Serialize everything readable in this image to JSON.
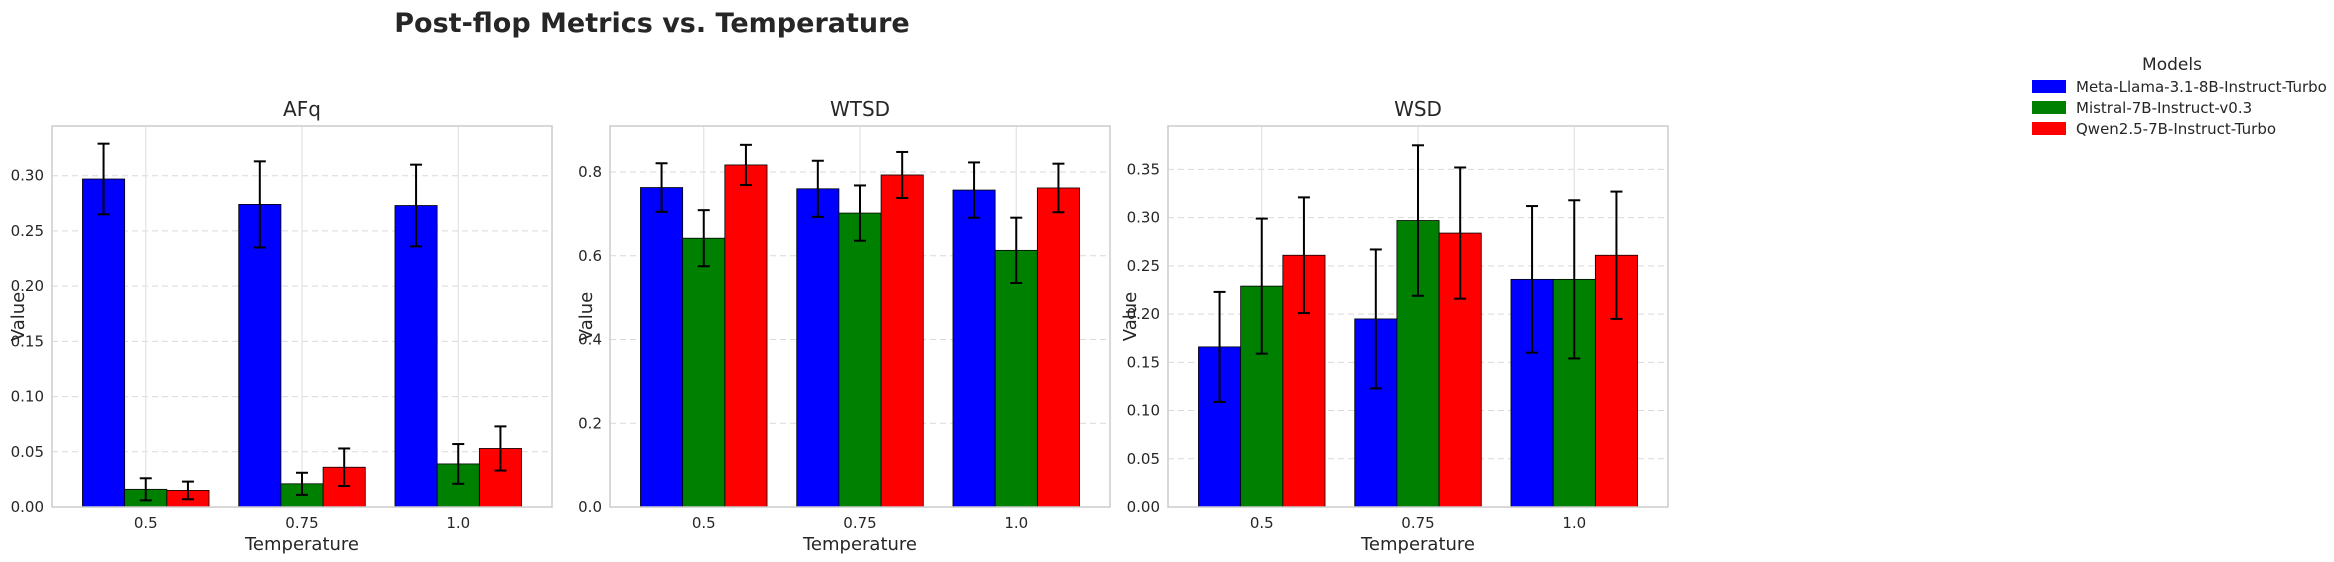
{
  "figure": {
    "title": "Post-flop Metrics vs. Temperature"
  },
  "legend": {
    "title": "Models",
    "placement": "outside-top-right"
  },
  "colors": {
    "series": [
      "#0000ff",
      "#008000",
      "#ff0000"
    ]
  },
  "chart_data": [
    {
      "type": "bar",
      "title": "AFq",
      "xlabel": "Temperature",
      "ylabel": "Value",
      "categories": [
        "0.5",
        "0.75",
        "1.0"
      ],
      "ylim": [
        0,
        0.345
      ],
      "yticks": [
        0.0,
        0.05,
        0.1,
        0.15,
        0.2,
        0.25,
        0.3
      ],
      "ytick_labels": [
        "0.00",
        "0.05",
        "0.10",
        "0.15",
        "0.20",
        "0.25",
        "0.30"
      ],
      "grid": true,
      "series": [
        {
          "name": "Meta-Llama-3.1-8B-Instruct-Turbo",
          "values": [
            0.297,
            0.274,
            0.273
          ],
          "errors": [
            0.032,
            0.039,
            0.037
          ]
        },
        {
          "name": "Mistral-7B-Instruct-v0.3",
          "values": [
            0.016,
            0.021,
            0.039
          ],
          "errors": [
            0.01,
            0.01,
            0.018
          ]
        },
        {
          "name": "Qwen2.5-7B-Instruct-Turbo",
          "values": [
            0.015,
            0.036,
            0.053
          ],
          "errors": [
            0.008,
            0.017,
            0.02
          ]
        }
      ]
    },
    {
      "type": "bar",
      "title": "WTSD",
      "xlabel": "Temperature",
      "ylabel": "Value",
      "categories": [
        "0.5",
        "0.75",
        "1.0"
      ],
      "ylim": [
        0,
        0.91
      ],
      "yticks": [
        0.0,
        0.2,
        0.4,
        0.6,
        0.8
      ],
      "ytick_labels": [
        "0.0",
        "0.2",
        "0.4",
        "0.6",
        "0.8"
      ],
      "grid": true,
      "series": [
        {
          "name": "Meta-Llama-3.1-8B-Instruct-Turbo",
          "values": [
            0.763,
            0.76,
            0.757
          ],
          "errors": [
            0.058,
            0.067,
            0.066
          ]
        },
        {
          "name": "Mistral-7B-Instruct-v0.3",
          "values": [
            0.642,
            0.702,
            0.613
          ],
          "errors": [
            0.067,
            0.066,
            0.078
          ]
        },
        {
          "name": "Qwen2.5-7B-Instruct-Turbo",
          "values": [
            0.817,
            0.793,
            0.762
          ],
          "errors": [
            0.048,
            0.055,
            0.058
          ]
        }
      ]
    },
    {
      "type": "bar",
      "title": "WSD",
      "xlabel": "Temperature",
      "ylabel": "Value",
      "categories": [
        "0.5",
        "0.75",
        "1.0"
      ],
      "ylim": [
        0,
        0.395
      ],
      "yticks": [
        0.0,
        0.05,
        0.1,
        0.15,
        0.2,
        0.25,
        0.3,
        0.35
      ],
      "ytick_labels": [
        "0.00",
        "0.05",
        "0.10",
        "0.15",
        "0.20",
        "0.25",
        "0.30",
        "0.35"
      ],
      "grid": true,
      "series": [
        {
          "name": "Meta-Llama-3.1-8B-Instruct-Turbo",
          "values": [
            0.166,
            0.195,
            0.236
          ],
          "errors": [
            0.057,
            0.072,
            0.076
          ]
        },
        {
          "name": "Mistral-7B-Instruct-v0.3",
          "values": [
            0.229,
            0.297,
            0.236
          ],
          "errors": [
            0.07,
            0.078,
            0.082
          ]
        },
        {
          "name": "Qwen2.5-7B-Instruct-Turbo",
          "values": [
            0.261,
            0.284,
            0.261
          ],
          "errors": [
            0.06,
            0.068,
            0.066
          ]
        }
      ]
    }
  ]
}
